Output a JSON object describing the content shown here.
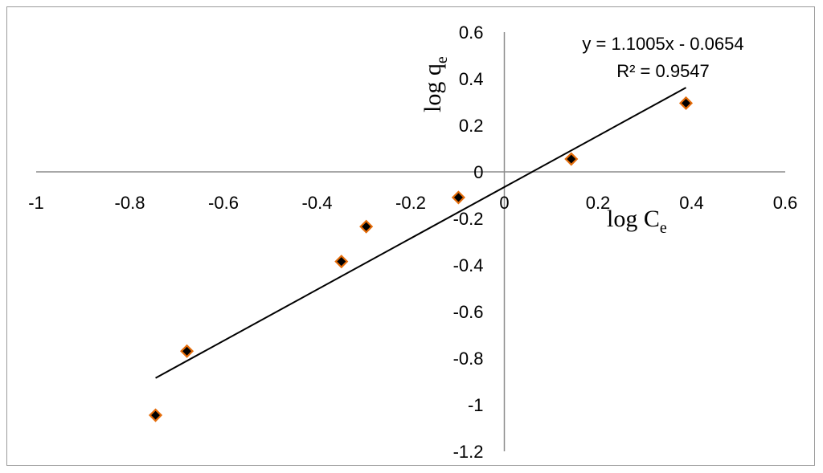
{
  "chart_data": {
    "type": "scatter",
    "title": "",
    "xlabel": {
      "main": "log C",
      "sub": "e"
    },
    "ylabel": {
      "main": "log q",
      "sub": "e"
    },
    "xlim": [
      -1,
      0.6
    ],
    "ylim": [
      -1.2,
      0.6
    ],
    "x_ticks": [
      "-1",
      "-0.8",
      "-0.6",
      "-0.4",
      "-0.2",
      "0",
      "0.2",
      "0.4",
      "0.6"
    ],
    "y_ticks": [
      "0.6",
      "0.4",
      "0.2",
      "0",
      "-0.2",
      "-0.4",
      "-0.6",
      "-0.8",
      "-1",
      "-1.2"
    ],
    "grid": false,
    "legend": "none",
    "series": [
      {
        "marker": "diamond",
        "marker_fill": "#000000",
        "marker_edge": "#e46c0a",
        "points": [
          {
            "x": -0.745,
            "y": -1.045
          },
          {
            "x": -0.678,
            "y": -0.77
          },
          {
            "x": -0.348,
            "y": -0.385
          },
          {
            "x": -0.295,
            "y": -0.235
          },
          {
            "x": -0.098,
            "y": -0.11
          },
          {
            "x": 0.143,
            "y": 0.055
          },
          {
            "x": 0.388,
            "y": 0.295
          }
        ]
      }
    ],
    "trendline": {
      "slope": 1.1005,
      "intercept": -0.0654,
      "x_range": [
        -0.745,
        0.388
      ],
      "equation_label": "y = 1.1005x - 0.0654",
      "r2_label": "R² = 0.9547"
    }
  }
}
